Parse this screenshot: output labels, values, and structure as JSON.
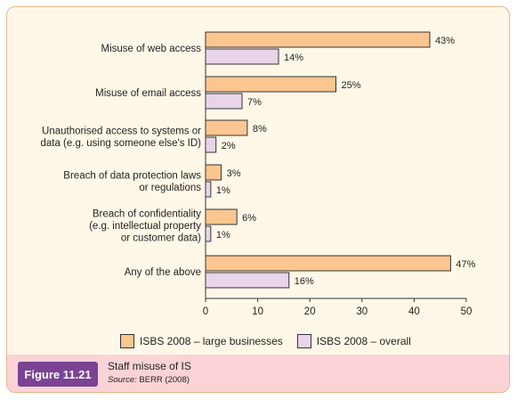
{
  "chart_data": {
    "type": "bar",
    "orientation": "horizontal",
    "categories": [
      [
        "Misuse of web access"
      ],
      [
        "Misuse of email access"
      ],
      [
        "Unauthorised access to systems or",
        "data (e.g. using someone else's ID)"
      ],
      [
        "Breach of data protection laws",
        "or regulations"
      ],
      [
        "Breach of confidentiality",
        "(e.g. intellectual property",
        "or customer data)"
      ],
      [
        "Any of the above"
      ]
    ],
    "series": [
      {
        "name": "ISBS 2008 – large businesses",
        "values": [
          43,
          25,
          8,
          3,
          6,
          47
        ],
        "labels": [
          "43%",
          "25%",
          "8%",
          "3%",
          "6%",
          "47%"
        ],
        "color": "#fbc690"
      },
      {
        "name": "ISBS 2008 – overall",
        "values": [
          14,
          7,
          2,
          1,
          1,
          16
        ],
        "labels": [
          "14%",
          "7%",
          "2%",
          "1%",
          "1%",
          "16%"
        ],
        "color": "#e9d4e8"
      }
    ],
    "xlim": [
      0,
      50
    ],
    "xticks": [
      "0",
      "10",
      "20",
      "30",
      "40",
      "50"
    ],
    "xlabel": "",
    "ylabel": "",
    "legend_placement": "bottom",
    "grid": false
  },
  "caption": {
    "figure_label": "Figure 11.21",
    "title": "Staff misuse of IS",
    "source_label": "Source:",
    "source_text": "BERR (2008)"
  },
  "colors": {
    "frame_background": "#fff8e8",
    "frame_border": "#e3b98a",
    "caption_background": "#fbd3d7",
    "badge_background": "#7a4393"
  }
}
